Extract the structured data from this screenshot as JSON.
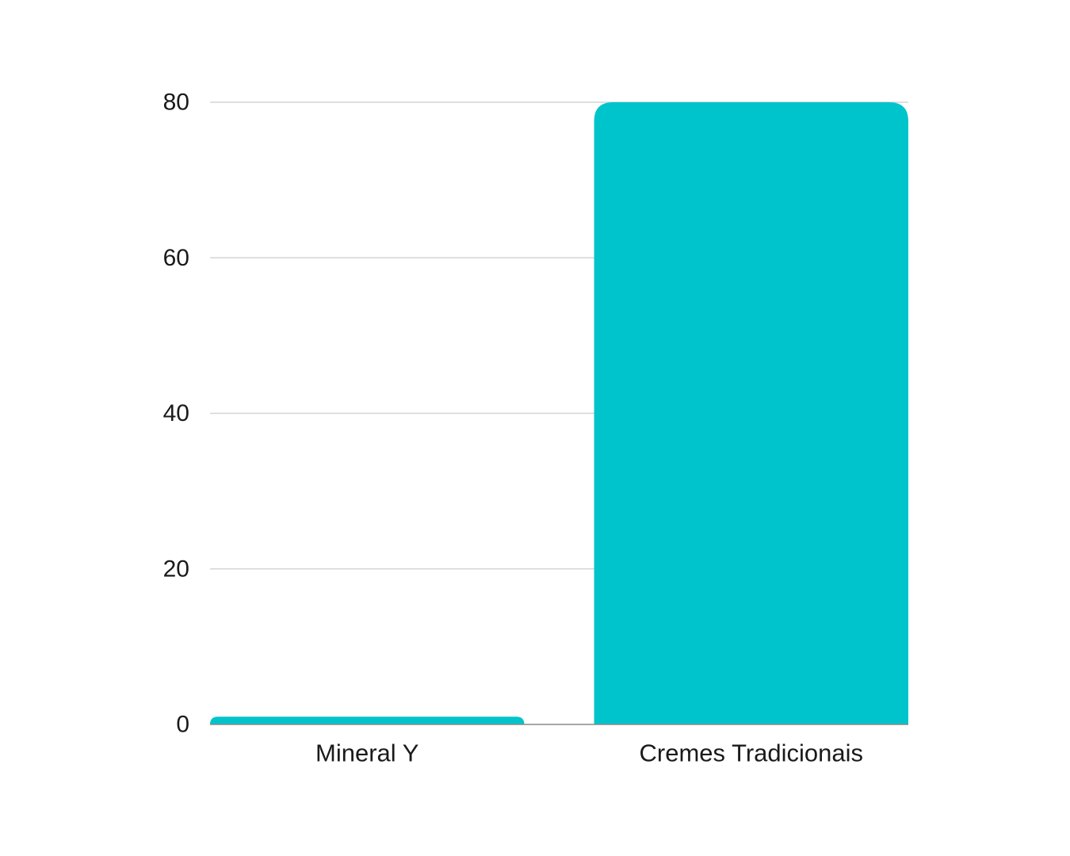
{
  "chart_data": {
    "type": "bar",
    "categories": [
      "Mineral Y",
      "Cremes Tradicionais"
    ],
    "values": [
      1,
      80
    ],
    "ylim": [
      0,
      80
    ],
    "yticks": [
      0,
      20,
      40,
      60,
      80
    ],
    "ytick_labels": [
      "0",
      "20",
      "40",
      "60",
      "80"
    ],
    "grid": true,
    "bar_color": "#00C4CC",
    "grid_color": "#d4d4d4",
    "baseline_color": "#8a8a8a",
    "text_color": "#1a1a1a"
  }
}
